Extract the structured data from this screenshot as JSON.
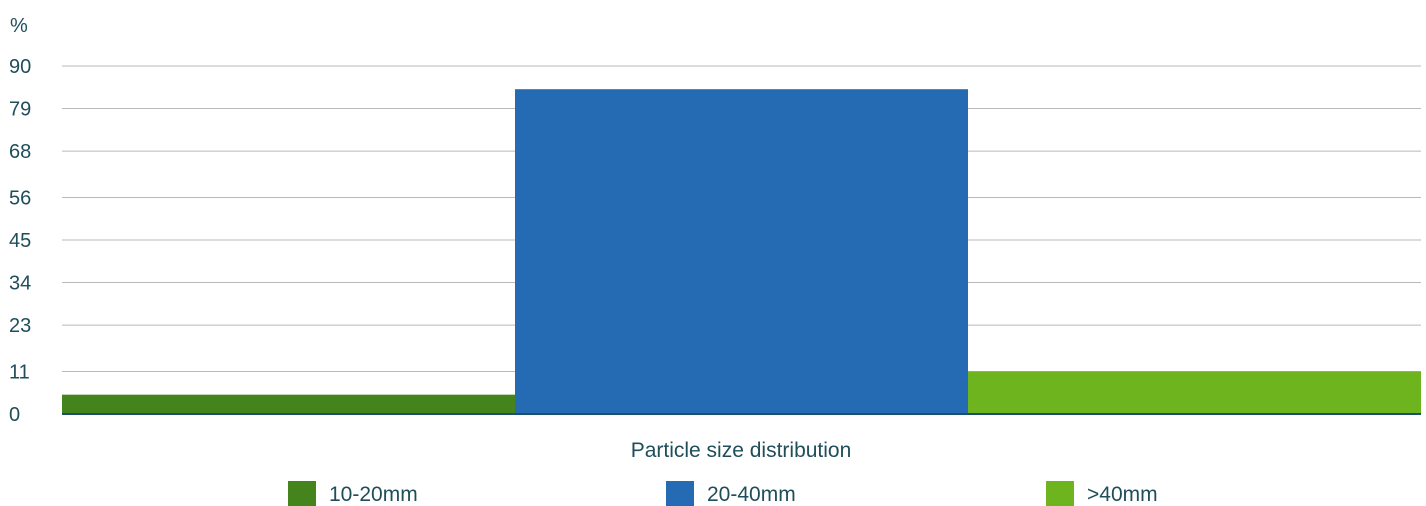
{
  "chart_data": {
    "type": "bar",
    "ylabel": "%",
    "xlabel": "Particle size distribution",
    "ylim": [
      0,
      90
    ],
    "yticks": [
      0,
      11,
      23,
      34,
      45,
      56,
      68,
      79,
      90
    ],
    "grid": true,
    "legend_position": "bottom",
    "series": [
      {
        "name": "10-20mm",
        "value": 5,
        "color": "#45841d"
      },
      {
        "name": "20-40mm",
        "value": 84,
        "color": "#256bb3"
      },
      {
        "name": ">40mm",
        "value": 11,
        "color": "#6db41f"
      }
    ]
  }
}
